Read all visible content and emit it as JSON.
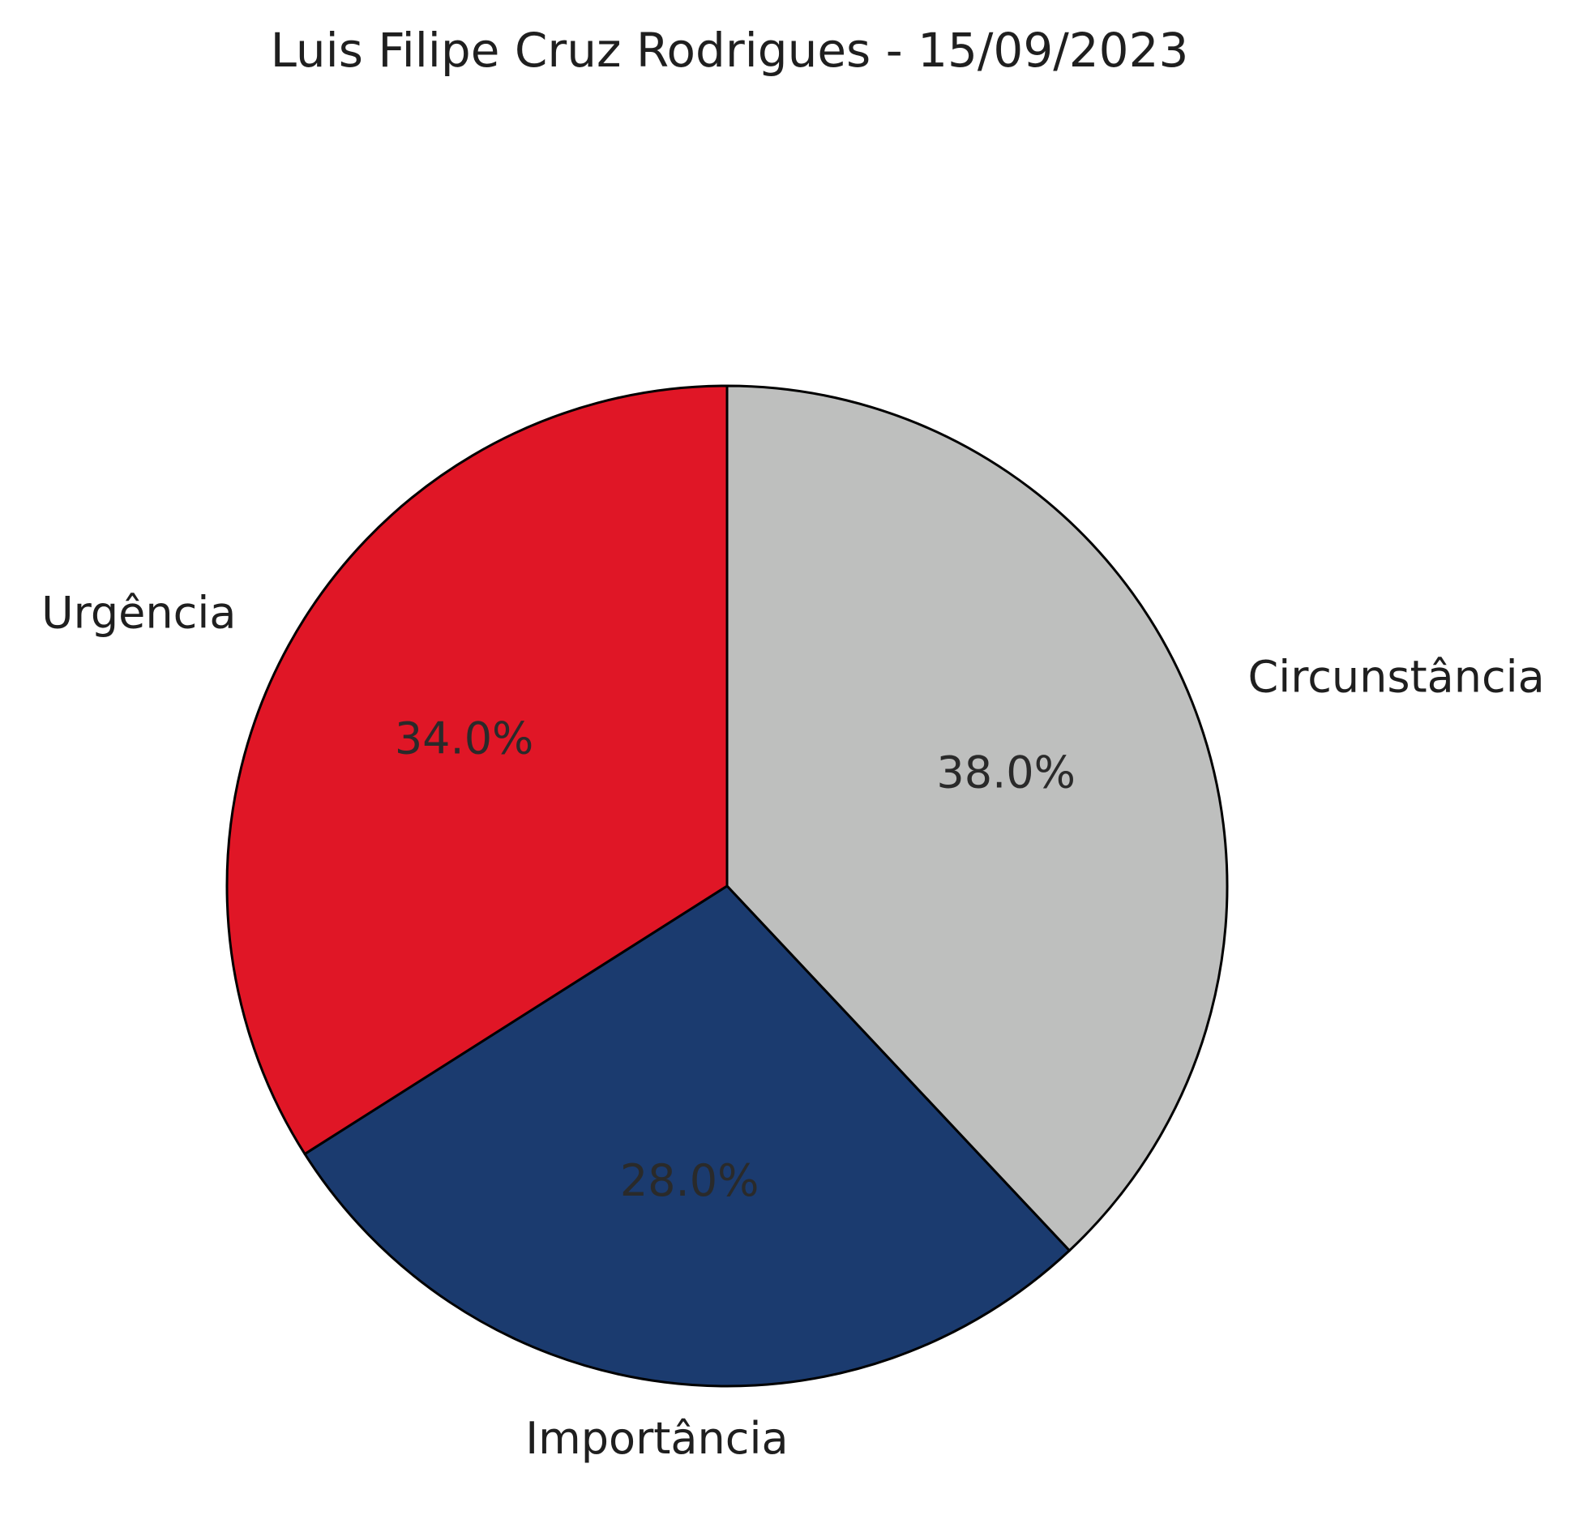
{
  "chart_data": {
    "type": "pie",
    "title": "Luis Filipe Cruz Rodrigues - 15/09/2023",
    "slices": [
      {
        "label": "Circunstância",
        "value": 38.0,
        "pct_label": "38.0%",
        "color": "#bebfbe"
      },
      {
        "label": "Importância",
        "value": 28.0,
        "pct_label": "28.0%",
        "color": "#1b3b6f"
      },
      {
        "label": "Urgência",
        "value": 34.0,
        "pct_label": "34.0%",
        "color": "#e01626"
      }
    ],
    "start": "top",
    "direction": "clockwise",
    "edge_color": "#000000",
    "legend": "none"
  }
}
